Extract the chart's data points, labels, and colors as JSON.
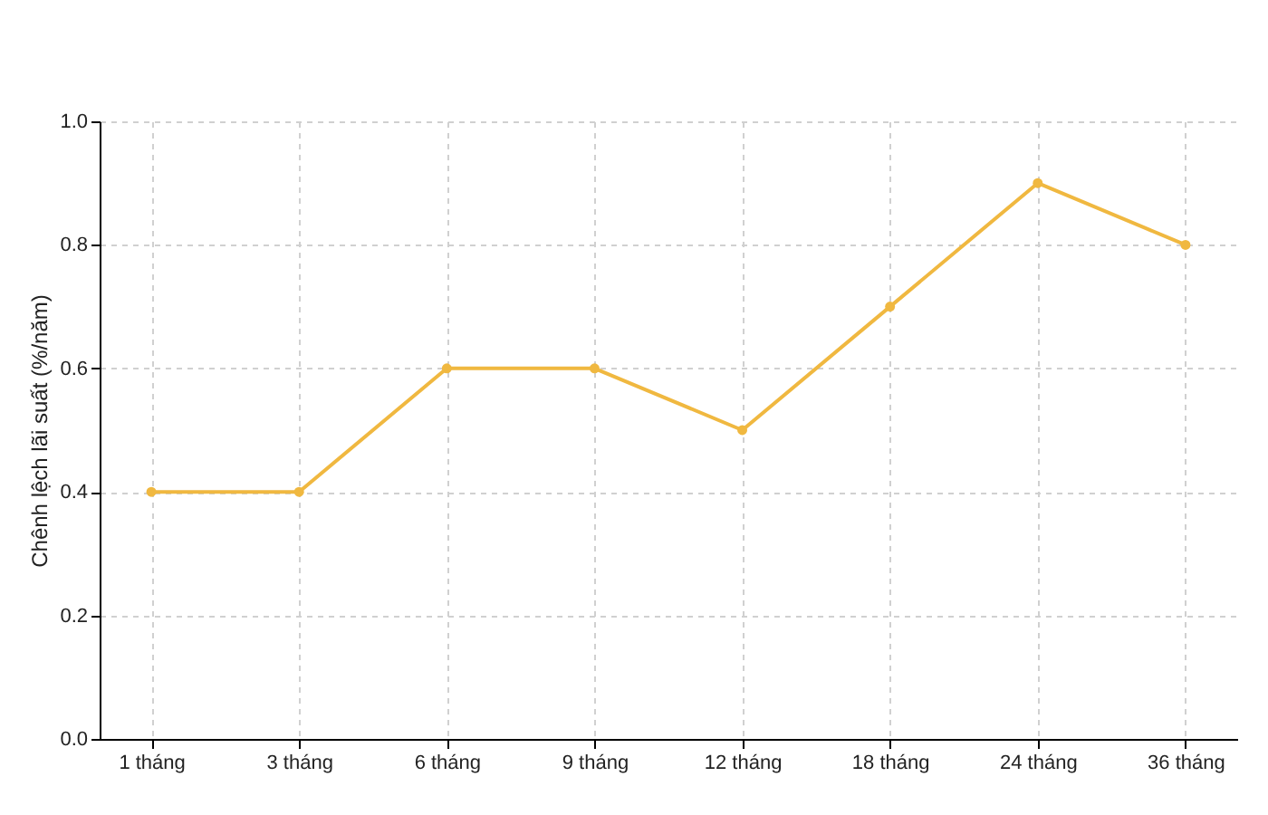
{
  "chart_data": {
    "type": "line",
    "ylabel": "Chênh lệch lãi suất (%/năm)",
    "categories": [
      "1 tháng",
      "3 tháng",
      "6 tháng",
      "9 tháng",
      "12 tháng",
      "18 tháng",
      "24 tháng",
      "36 tháng"
    ],
    "series": [
      {
        "color": "#f0b840",
        "values": [
          0.4,
          0.4,
          0.6,
          0.6,
          0.5,
          0.7,
          0.9,
          0.8
        ]
      }
    ],
    "ylim": [
      0,
      1
    ],
    "yticks": [
      {
        "value": 0,
        "label": "0.0"
      },
      0.2,
      0.4,
      0.6,
      0.8,
      {
        "value": 1,
        "label": "1.0"
      }
    ],
    "grid": true,
    "marker": "circle",
    "line_style": "solid"
  }
}
